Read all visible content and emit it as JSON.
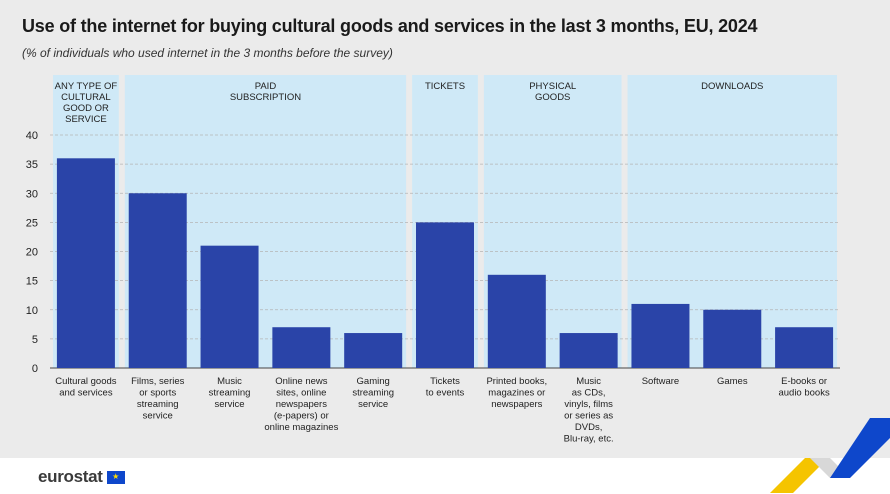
{
  "header": {
    "title": "Use of the internet for buying cultural goods and services in the last 3 months, EU, 2024",
    "subtitle": "(% of individuals who used internet in the 3 months before the survey)"
  },
  "footer": {
    "logo_text": "eurostat",
    "flag_glyph": "★"
  },
  "colors": {
    "bar": "#2a44a8",
    "group_band": "#cfe9f7",
    "background": "#ebebeb",
    "gridline": "#b5b5b5"
  },
  "chart_data": {
    "type": "bar",
    "title": "Use of the internet for buying cultural goods and services in the last 3 months, EU, 2024",
    "subtitle": "(% of individuals who used internet in the 3 months before the survey)",
    "xlabel": "",
    "ylabel": "",
    "ylim": [
      0,
      40
    ],
    "yticks": [
      0,
      5,
      10,
      15,
      20,
      25,
      30,
      35,
      40
    ],
    "grid": true,
    "groups": [
      {
        "label": [
          "ANY TYPE OF",
          "CULTURAL",
          "GOOD OR",
          "SERVICE"
        ],
        "members": [
          0
        ]
      },
      {
        "label": [
          "PAID",
          "SUBSCRIPTION"
        ],
        "members": [
          1,
          2,
          3,
          4
        ]
      },
      {
        "label": [
          "TICKETS"
        ],
        "members": [
          5
        ]
      },
      {
        "label": [
          "PHYSICAL",
          "GOODS"
        ],
        "members": [
          6,
          7
        ]
      },
      {
        "label": [
          "DOWNLOADS"
        ],
        "members": [
          8,
          9,
          10
        ]
      }
    ],
    "categories": [
      [
        "Cultural goods",
        "and services"
      ],
      [
        "Films, series",
        "or sports",
        "streaming",
        "service"
      ],
      [
        "Music",
        "streaming",
        "service"
      ],
      [
        "Online news",
        "sites, online",
        "newspapers",
        "(e-papers) or",
        "online magazines"
      ],
      [
        "Gaming",
        "streaming",
        "service"
      ],
      [
        "Tickets",
        "to events"
      ],
      [
        "Printed books,",
        "magazines or",
        "newspapers"
      ],
      [
        "Music",
        "as CDs,",
        "vinyls, films",
        "or series as",
        "DVDs,",
        "Blu-ray, etc."
      ],
      [
        "Software"
      ],
      [
        "Games"
      ],
      [
        "E-books or",
        "audio books"
      ]
    ],
    "values": [
      36,
      30,
      21,
      7,
      6,
      25,
      16,
      6,
      11,
      10,
      7
    ]
  }
}
